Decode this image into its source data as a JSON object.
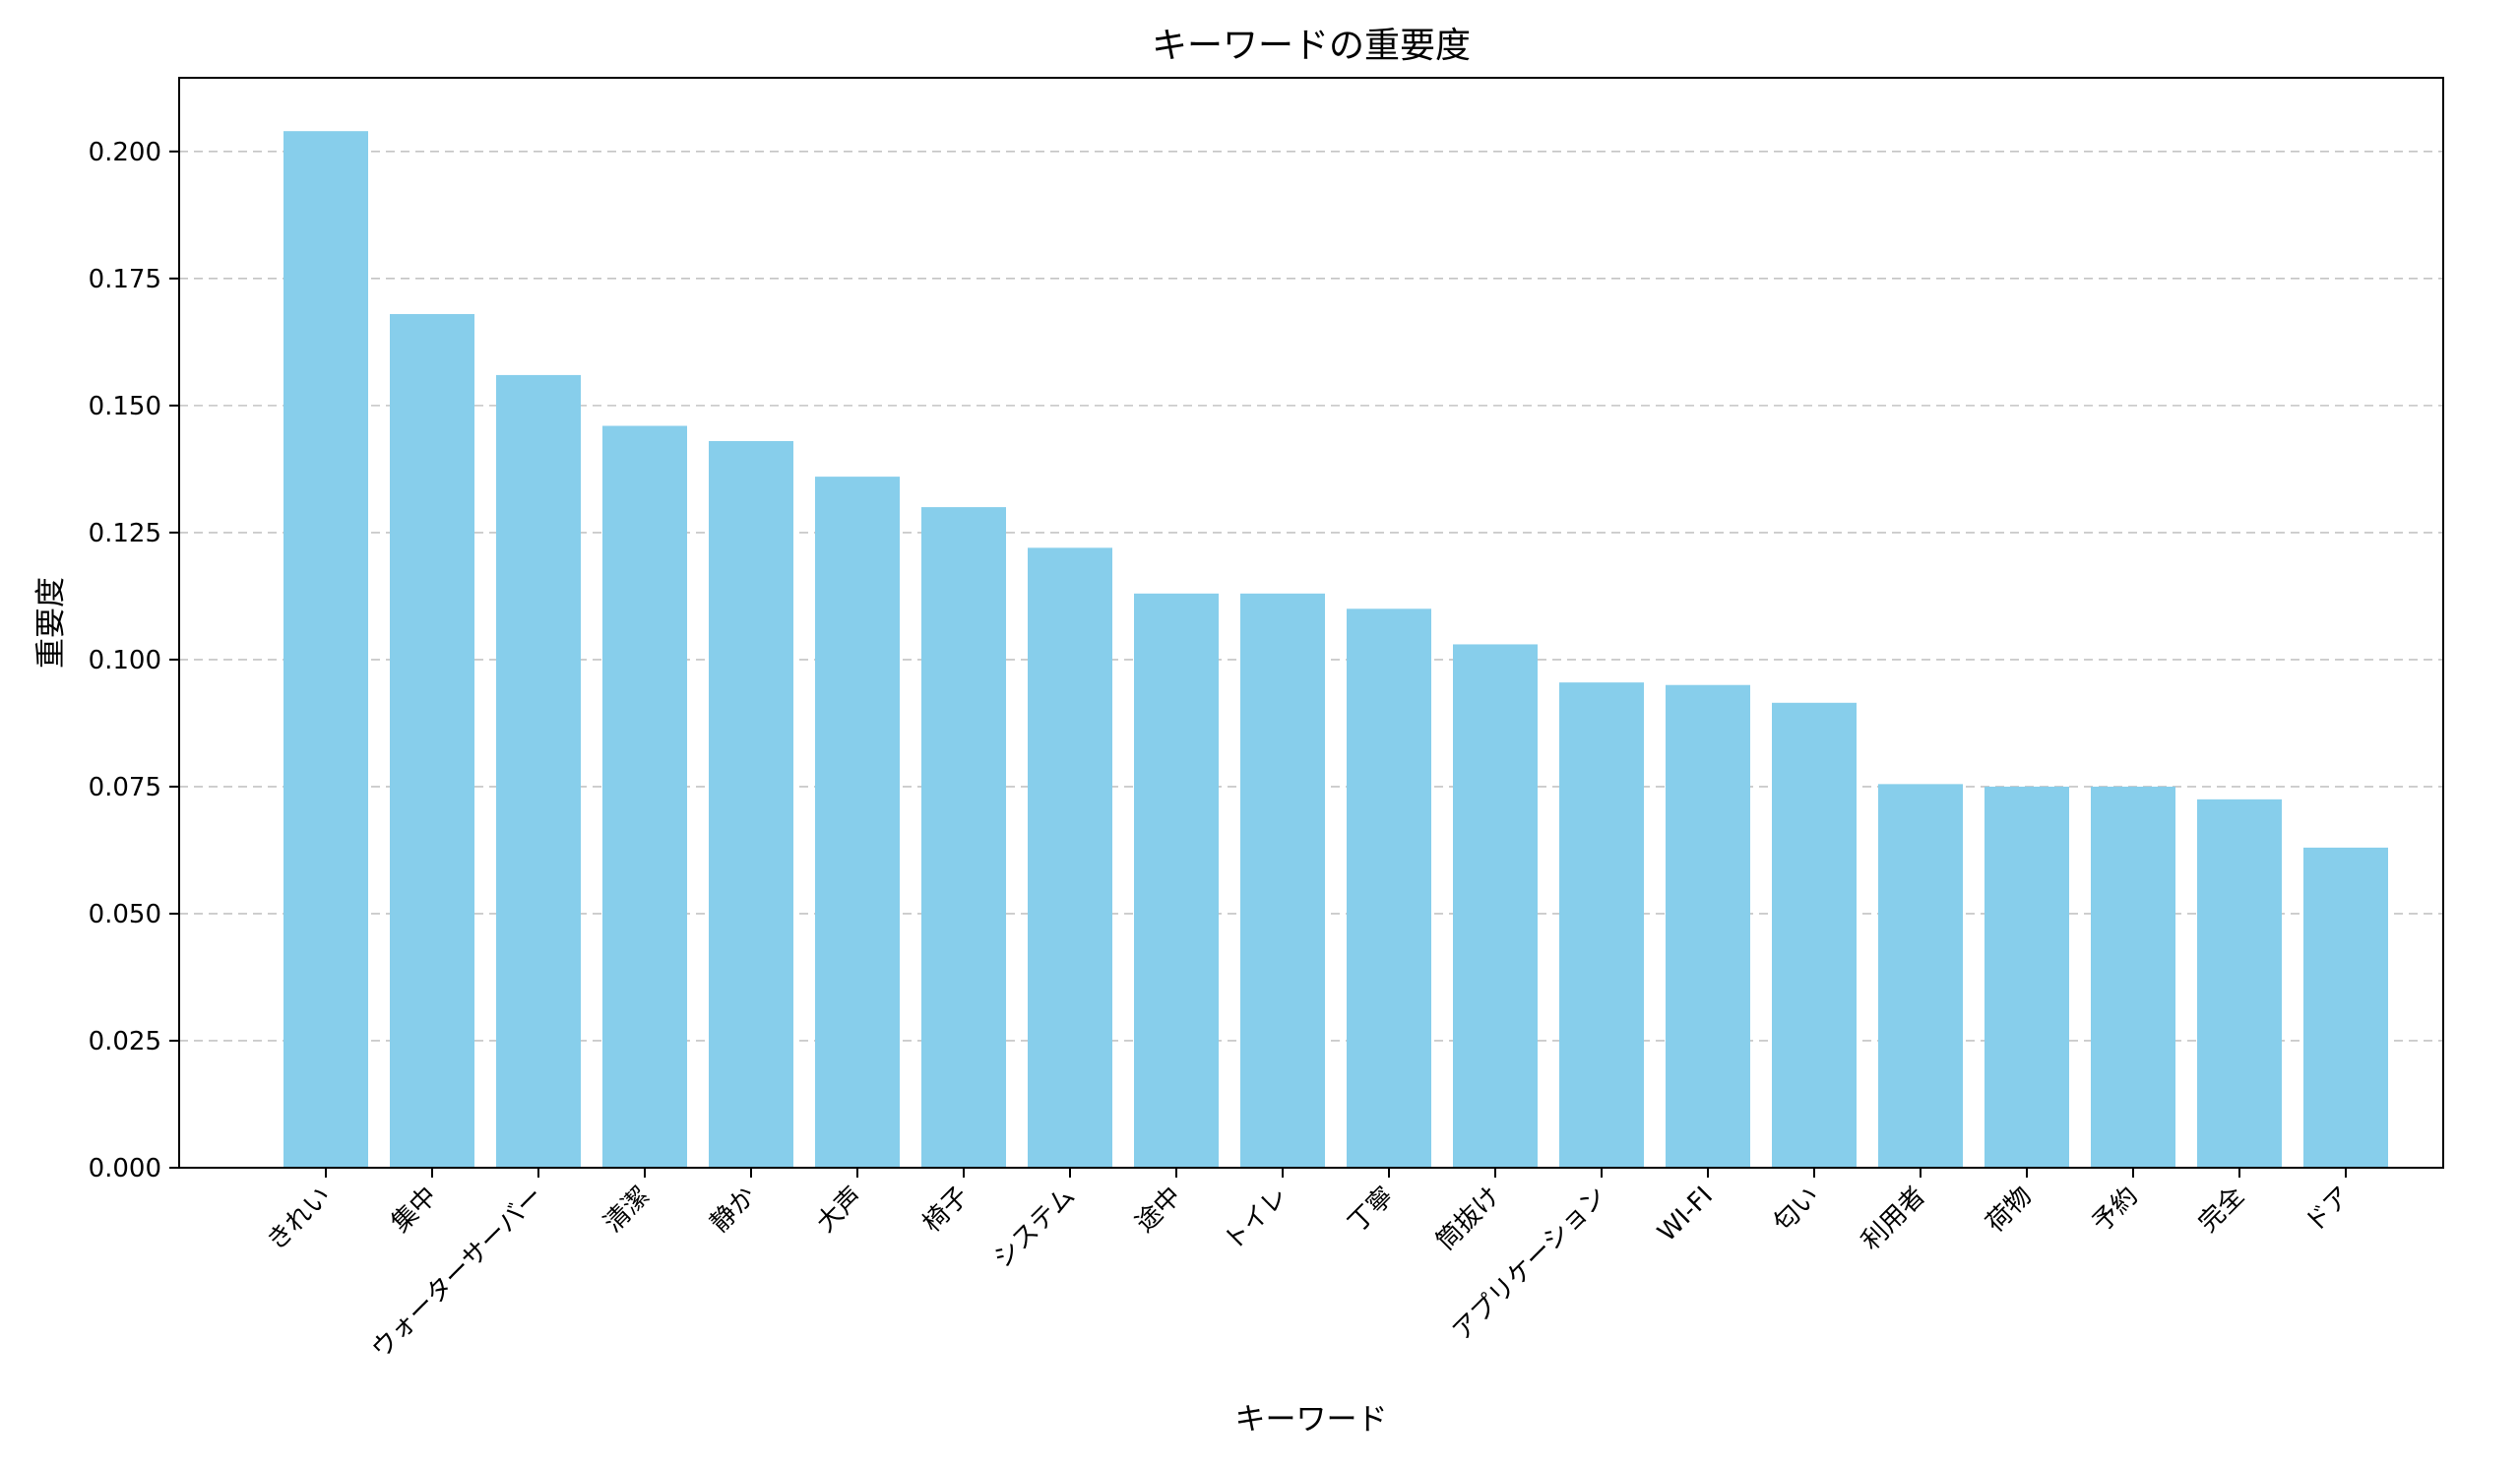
{
  "chart_data": {
    "type": "bar",
    "title": "キーワードの重要度",
    "xlabel": "キーワード",
    "ylabel": "重要度",
    "categories": [
      "きれい",
      "集中",
      "ウォーターサーバー",
      "清潔",
      "静か",
      "大声",
      "椅子",
      "システム",
      "途中",
      "トイレ",
      "丁寧",
      "筒抜け",
      "アプリケーション",
      "WI-FI",
      "匂い",
      "利用者",
      "荷物",
      "予約",
      "完全",
      "ドア"
    ],
    "values": [
      0.204,
      0.168,
      0.156,
      0.146,
      0.143,
      0.136,
      0.13,
      0.122,
      0.113,
      0.113,
      0.11,
      0.103,
      0.0955,
      0.095,
      0.0915,
      0.0755,
      0.075,
      0.075,
      0.0725,
      0.063
    ],
    "ylim": [
      0,
      0.2145
    ],
    "yticks": [
      "0.000",
      "0.025",
      "0.050",
      "0.075",
      "0.100",
      "0.125",
      "0.150",
      "0.175",
      "0.200"
    ],
    "ytick_values": [
      0,
      0.025,
      0.05,
      0.075,
      0.1,
      0.125,
      0.15,
      0.175,
      0.2
    ],
    "grid": "y-dashed",
    "bar_color": "#87CEEB",
    "grid_color": "#b0b0b0",
    "tick_rotation": 45
  }
}
